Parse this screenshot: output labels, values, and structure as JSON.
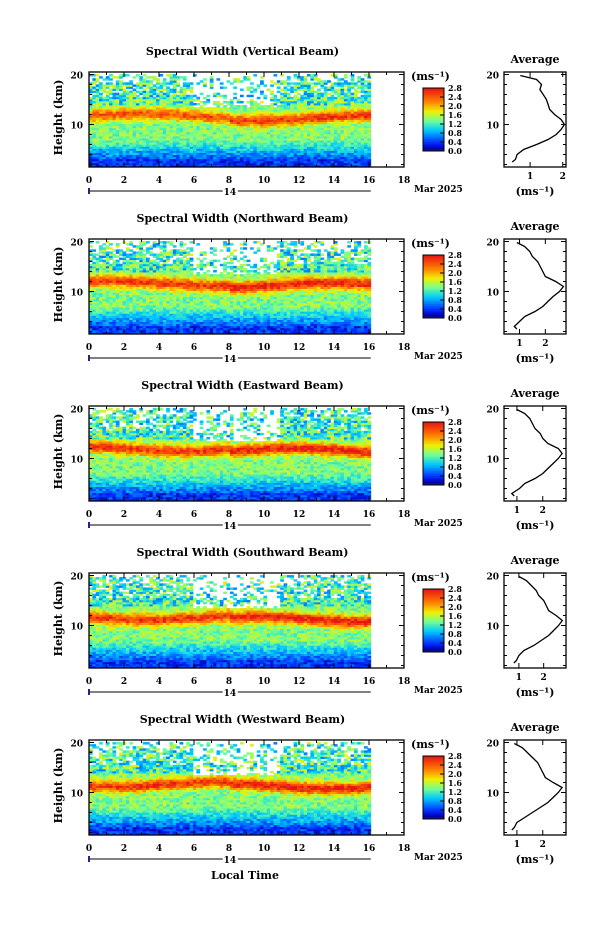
{
  "figure": {
    "xlabel": "Local Time",
    "ylabel": "Height (km)",
    "date_label": "Mar 2025",
    "day_label": "14",
    "unit_label": "(ms⁻¹)",
    "average_title": "Average",
    "average_xlabel": "(ms⁻¹)"
  },
  "chart_data": [
    {
      "type": "heatmap",
      "beam": "Vertical",
      "title": "Spectral Width (Vertical Beam)",
      "xlim": [
        0,
        18
      ],
      "x_ticks": [
        "0",
        "2",
        "4",
        "6",
        "8",
        "10",
        "12",
        "14",
        "16",
        "18"
      ],
      "data_x_end": 16.1,
      "ylim": [
        1.5,
        20.5
      ],
      "y_ticks": [
        "10",
        "20"
      ],
      "colorbar_ticks": [
        "0.0",
        "0.4",
        "0.8",
        "1.2",
        "1.6",
        "2.0",
        "2.4",
        "2.8"
      ],
      "colorscale_max": 2.8,
      "band_height": 11.5,
      "profile": {
        "xlim": [
          0.2,
          2.1
        ],
        "x_ticks": [
          "1",
          "2"
        ],
        "x_tick_values": [
          1,
          2
        ],
        "h": [
          2.5,
          3,
          4,
          5,
          6,
          7,
          8,
          9,
          10,
          11,
          12,
          13,
          14,
          15,
          16,
          17,
          18,
          19,
          19.8
        ],
        "v": [
          0.45,
          0.55,
          0.6,
          0.8,
          1.2,
          1.55,
          1.8,
          1.95,
          2.05,
          1.95,
          1.75,
          1.6,
          1.55,
          1.5,
          1.4,
          1.3,
          1.35,
          1.2,
          0.7
        ]
      }
    },
    {
      "type": "heatmap",
      "beam": "Northward",
      "title": "Spectral Width (Northward Beam)",
      "xlim": [
        0,
        18
      ],
      "x_ticks": [
        "0",
        "2",
        "4",
        "6",
        "8",
        "10",
        "12",
        "14",
        "16",
        "18"
      ],
      "data_x_end": 16.1,
      "ylim": [
        1.5,
        20.5
      ],
      "y_ticks": [
        "10",
        "20"
      ],
      "colorbar_ticks": [
        "0.0",
        "0.4",
        "0.8",
        "1.2",
        "1.6",
        "2.0",
        "2.4",
        "2.8"
      ],
      "colorscale_max": 2.8,
      "band_height": 11.5,
      "profile": {
        "xlim": [
          0.4,
          2.8
        ],
        "x_ticks": [
          "1",
          "2"
        ],
        "x_tick_values": [
          1,
          2
        ],
        "h": [
          2.5,
          3,
          4,
          5,
          6,
          7,
          8,
          9,
          10,
          11,
          12,
          13,
          14,
          15,
          16,
          17,
          18,
          19,
          19.8
        ],
        "v": [
          0.9,
          0.8,
          1.0,
          1.2,
          1.6,
          1.9,
          2.1,
          2.3,
          2.55,
          2.7,
          2.4,
          2.0,
          1.9,
          1.8,
          1.7,
          1.5,
          1.4,
          1.2,
          0.9
        ]
      }
    },
    {
      "type": "heatmap",
      "beam": "Eastward",
      "title": "Spectral Width (Eastward Beam)",
      "xlim": [
        0,
        18
      ],
      "x_ticks": [
        "0",
        "2",
        "4",
        "6",
        "8",
        "10",
        "12",
        "14",
        "16",
        "18"
      ],
      "data_x_end": 16.1,
      "ylim": [
        1.5,
        20.5
      ],
      "y_ticks": [
        "10",
        "20"
      ],
      "colorbar_ticks": [
        "0.0",
        "0.4",
        "0.8",
        "1.2",
        "1.6",
        "2.0",
        "2.4",
        "2.8"
      ],
      "colorscale_max": 2.8,
      "band_height": 11.8,
      "profile": {
        "xlim": [
          0.5,
          2.9
        ],
        "x_ticks": [
          "1",
          "2"
        ],
        "x_tick_values": [
          1,
          2
        ],
        "h": [
          2.5,
          3,
          4,
          5,
          6,
          7,
          8,
          9,
          10,
          11,
          12,
          13,
          14,
          15,
          16,
          17,
          18,
          19,
          19.8
        ],
        "v": [
          0.9,
          0.8,
          1.1,
          1.3,
          1.7,
          2.0,
          2.2,
          2.4,
          2.6,
          2.75,
          2.6,
          2.2,
          2.0,
          1.9,
          1.7,
          1.6,
          1.5,
          1.3,
          1.0
        ]
      }
    },
    {
      "type": "heatmap",
      "beam": "Southward",
      "title": "Spectral Width (Southward Beam)",
      "xlim": [
        0,
        18
      ],
      "x_ticks": [
        "0",
        "2",
        "4",
        "6",
        "8",
        "10",
        "12",
        "14",
        "16",
        "18"
      ],
      "data_x_end": 16.1,
      "ylim": [
        1.5,
        20.5
      ],
      "y_ticks": [
        "10",
        "20"
      ],
      "colorbar_ticks": [
        "0.0",
        "0.4",
        "0.8",
        "1.2",
        "1.6",
        "2.0",
        "2.4",
        "2.8"
      ],
      "colorscale_max": 2.8,
      "band_height": 11.5,
      "profile": {
        "xlim": [
          0.4,
          2.9
        ],
        "x_ticks": [
          "1",
          "2"
        ],
        "x_tick_values": [
          1,
          2
        ],
        "h": [
          2.5,
          3,
          4,
          5,
          6,
          7,
          8,
          9,
          10,
          11,
          12,
          13,
          14,
          15,
          16,
          17,
          18,
          19,
          19.8
        ],
        "v": [
          0.8,
          0.9,
          1.0,
          1.2,
          1.6,
          1.9,
          2.2,
          2.4,
          2.6,
          2.75,
          2.5,
          2.2,
          2.1,
          2.0,
          1.8,
          1.7,
          1.5,
          1.3,
          1.0
        ]
      }
    },
    {
      "type": "heatmap",
      "beam": "Westward",
      "title": "Spectral Width (Westward Beam)",
      "xlim": [
        0,
        18
      ],
      "x_ticks": [
        "0",
        "2",
        "4",
        "6",
        "8",
        "10",
        "12",
        "14",
        "16",
        "18"
      ],
      "data_x_end": 16.1,
      "ylim": [
        1.5,
        20.5
      ],
      "y_ticks": [
        "10",
        "20"
      ],
      "colorbar_ticks": [
        "0.0",
        "0.4",
        "0.8",
        "1.2",
        "1.6",
        "2.0",
        "2.4",
        "2.8"
      ],
      "colorscale_max": 2.8,
      "band_height": 11.5,
      "profile": {
        "xlim": [
          0.5,
          2.9
        ],
        "x_ticks": [
          "1",
          "2"
        ],
        "x_tick_values": [
          1,
          2
        ],
        "h": [
          2.5,
          3,
          4,
          5,
          6,
          7,
          8,
          9,
          10,
          11,
          12,
          13,
          14,
          15,
          16,
          17,
          18,
          19,
          19.8
        ],
        "v": [
          0.8,
          0.9,
          1.0,
          1.3,
          1.6,
          1.9,
          2.2,
          2.4,
          2.6,
          2.75,
          2.4,
          2.1,
          2.0,
          1.9,
          1.8,
          1.6,
          1.4,
          1.2,
          0.9
        ]
      }
    }
  ]
}
